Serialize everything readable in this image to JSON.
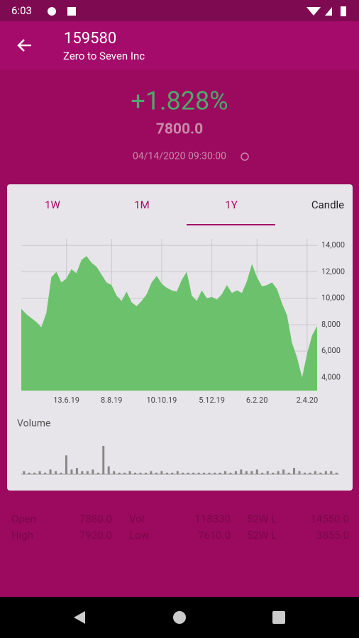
{
  "status": {
    "time": "6:03"
  },
  "header": {
    "symbol": "159580",
    "company": "Zero to Seven Inc"
  },
  "quote": {
    "change": "+1.828%",
    "price": "7800.0",
    "timestamp": "04/14/2020 09:30:00"
  },
  "tabs": [
    "1W",
    "1M",
    "1Y",
    "Candle"
  ],
  "chart": {
    "type": "area",
    "color": "#6cc26c",
    "values": [
      9200,
      8800,
      8500,
      8200,
      7800,
      8900,
      11600,
      12000,
      11200,
      11500,
      12200,
      11900,
      12900,
      13200,
      12700,
      12400,
      11800,
      11200,
      11000,
      10200,
      9800,
      10500,
      9700,
      9400,
      9800,
      10300,
      11200,
      11700,
      11100,
      10800,
      10600,
      10500,
      11400,
      12000,
      10200,
      9800,
      10600,
      10000,
      10100,
      9900,
      10300,
      11000,
      10400,
      10600,
      10400,
      11300,
      12600,
      11600,
      10900,
      11000,
      11200,
      10700,
      9600,
      8700,
      6600,
      5500,
      4000,
      5800,
      7200,
      7900
    ],
    "xlim": [
      0,
      59
    ],
    "xticks": [
      {
        "value": 9,
        "label": "13.6.19"
      },
      {
        "value": 18,
        "label": "8.8.19"
      },
      {
        "value": 28,
        "label": "10.10.19"
      },
      {
        "value": 38,
        "label": "5.12.19"
      },
      {
        "value": 47,
        "label": "6.2.20"
      },
      {
        "value": 57,
        "label": "2.4.20"
      }
    ],
    "ylim": [
      3000,
      14500
    ],
    "yticks": [
      {
        "value": 14000,
        "label": "14,000"
      },
      {
        "value": 12000,
        "label": "12,000"
      },
      {
        "value": 10000,
        "label": "10,000"
      },
      {
        "value": 8000,
        "label": "8,000"
      },
      {
        "value": 6000,
        "label": "6,000"
      },
      {
        "value": 4000,
        "label": "4,000"
      }
    ],
    "grid": true
  },
  "volume": {
    "label": "Volume",
    "color": "#888888",
    "values": [
      2,
      1,
      1,
      2,
      1,
      3,
      2,
      1,
      12,
      3,
      4,
      2,
      2,
      3,
      1,
      18,
      5,
      2,
      1,
      1,
      2,
      1,
      1,
      1,
      2,
      1,
      2,
      1,
      1,
      2,
      1,
      1,
      1,
      1,
      1,
      1,
      1,
      1,
      2,
      1,
      2,
      3,
      2,
      2,
      3,
      1,
      2,
      1,
      2,
      3,
      1,
      4,
      2,
      1,
      1,
      2,
      1,
      2,
      2,
      1
    ]
  },
  "stats": [
    [
      "Open",
      "7880.0",
      "Vol",
      "118330",
      "52W L",
      "14550.0"
    ],
    [
      "High",
      "7920.0",
      "Low",
      "7610.0",
      "52W L",
      "3855.0"
    ]
  ]
}
